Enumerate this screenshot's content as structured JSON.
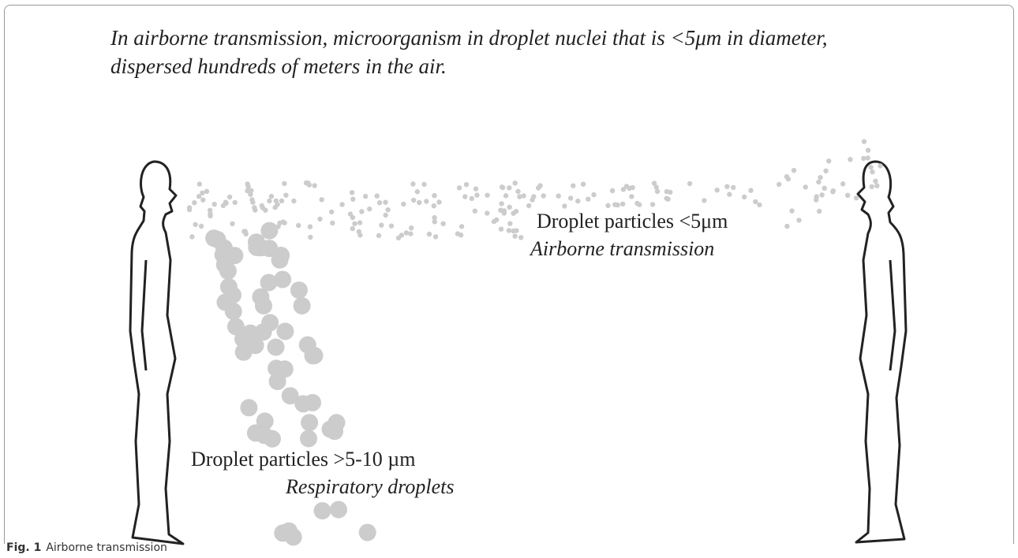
{
  "header": {
    "caption": "In airborne transmission, microorganism in droplet nuclei that is <5μm in diameter, dispersed hundreds of meters in the air."
  },
  "labels": {
    "airborne": {
      "title": "Droplet particles <5μm",
      "subtitle": "Airborne transmission"
    },
    "respiratory": {
      "title": "Droplet particles >5-10 µm",
      "subtitle": "Respiratory droplets"
    }
  },
  "figure_caption": {
    "number": "Fig. 1",
    "text": "Airborne transmission"
  }
}
